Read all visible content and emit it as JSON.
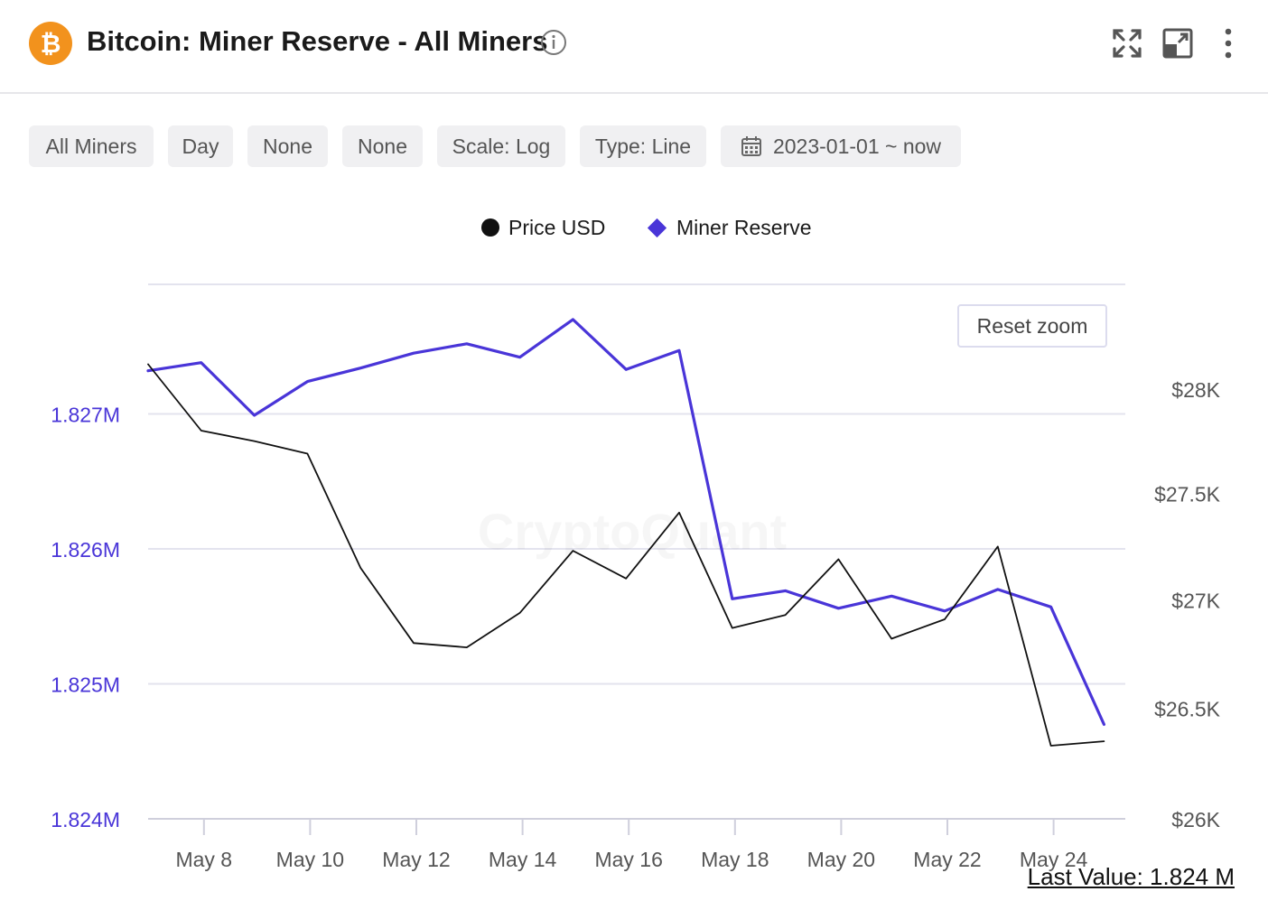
{
  "header": {
    "logo_glyph": "₿",
    "title": "Bitcoin: Miner Reserve - All Miners",
    "icons": [
      "info-icon",
      "fullscreen-icon",
      "open-external-icon",
      "more-vert-icon"
    ]
  },
  "filters": [
    {
      "label": "All Miners"
    },
    {
      "label": "Day"
    },
    {
      "label": "None"
    },
    {
      "label": "None"
    },
    {
      "label": "Scale: Log"
    },
    {
      "label": "Type: Line"
    },
    {
      "label": "2023-01-01 ~ now",
      "icon": "calendar-icon"
    }
  ],
  "reset_zoom_label": "Reset zoom",
  "watermark": "CryptoQuant",
  "last_value": "Last Value: 1.824 M",
  "colors": {
    "reserve": "#4935d8",
    "price": "#111111",
    "grid": "#e3e3ee",
    "left_axis": "#4935d8",
    "right_axis": "#555555",
    "brand": "#f2921d"
  },
  "chart_data": {
    "type": "line",
    "legend": [
      "Price USD",
      "Miner Reserve"
    ],
    "legend_position": "top-center",
    "x_tick_labels": [
      "May 8",
      "May 10",
      "May 12",
      "May 14",
      "May 16",
      "May 18",
      "May 20",
      "May 22",
      "May 24"
    ],
    "x": [
      "2023-05-07",
      "2023-05-08",
      "2023-05-09",
      "2023-05-10",
      "2023-05-11",
      "2023-05-12",
      "2023-05-13",
      "2023-05-14",
      "2023-05-15",
      "2023-05-16",
      "2023-05-17",
      "2023-05-18",
      "2023-05-19",
      "2023-05-20",
      "2023-05-21",
      "2023-05-22",
      "2023-05-23",
      "2023-05-24",
      "2023-05-25"
    ],
    "y_left": {
      "label": "Miner Reserve",
      "ticks": [
        "1.824M",
        "1.825M",
        "1.826M",
        "1.827M"
      ],
      "range": [
        1824000,
        1827960
      ]
    },
    "y_right": {
      "label": "Price USD",
      "ticks": [
        "$26K",
        "$26.5K",
        "$27K",
        "$27.5K",
        "$28K"
      ],
      "range": [
        26000,
        28510
      ],
      "scale": "log"
    },
    "series": [
      {
        "name": "Miner Reserve",
        "axis": "left",
        "values": [
          1827320,
          1827380,
          1826990,
          1827240,
          1827340,
          1827450,
          1827520,
          1827420,
          1827700,
          1827330,
          1827470,
          1825630,
          1825690,
          1825560,
          1825650,
          1825540,
          1825700,
          1825570,
          1824700
        ]
      },
      {
        "name": "Price USD",
        "axis": "right",
        "values": [
          28120,
          27800,
          27750,
          27690,
          27150,
          26800,
          26780,
          26940,
          27230,
          27100,
          27410,
          26870,
          26930,
          27190,
          26820,
          26910,
          27250,
          26330,
          26350
        ]
      }
    ],
    "grid": true
  }
}
